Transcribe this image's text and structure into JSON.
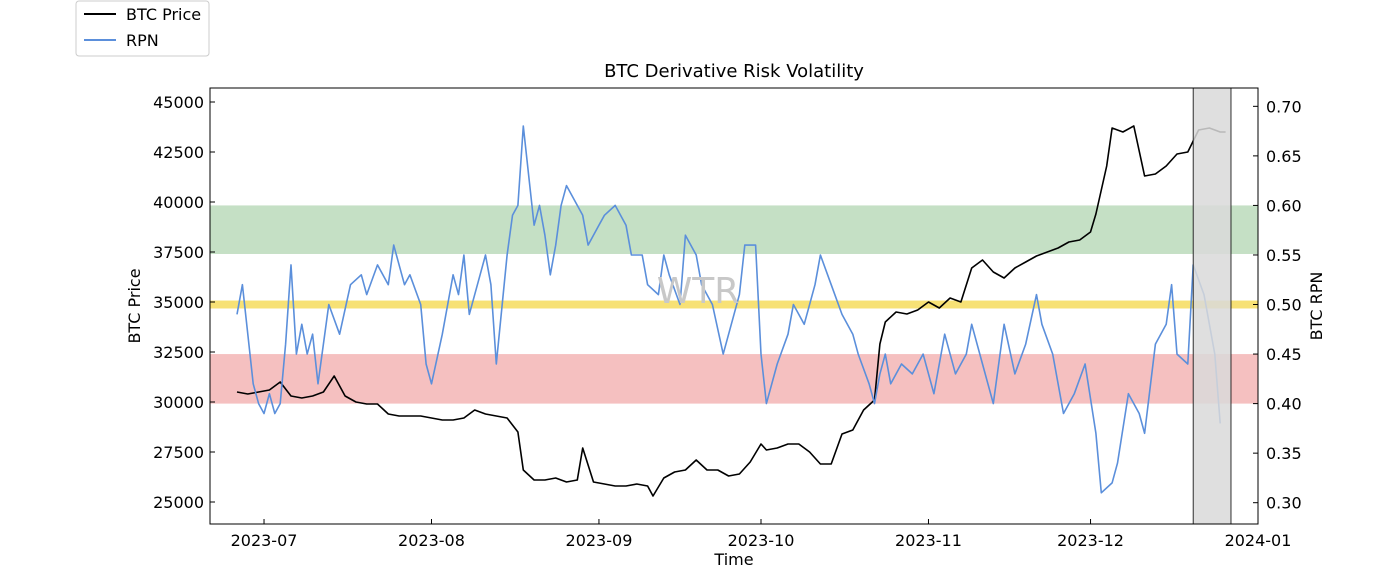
{
  "chart_data": {
    "type": "line",
    "title": "BTC Derivative Risk Volatility",
    "xlabel": "Time",
    "ylabel_left": "BTC Price",
    "ylabel_right": "BTC RPN",
    "watermark": "WTR",
    "legend_placement": "top-left",
    "x_ticks": [
      "2023-07",
      "2023-08",
      "2023-09",
      "2023-10",
      "2023-11",
      "2023-12",
      "2024-01"
    ],
    "x_range": [
      "2023-06-21",
      "2024-01-01"
    ],
    "ylim_left": [
      23900,
      45700
    ],
    "ylim_right": [
      0.2785,
      0.7185
    ],
    "y_ticks_left": [
      25000,
      27500,
      30000,
      32500,
      35000,
      37500,
      40000,
      42500,
      45000
    ],
    "y_ticks_right": [
      0.3,
      0.35,
      0.4,
      0.45,
      0.5,
      0.55,
      0.6,
      0.65,
      0.7
    ],
    "bands_rpn": [
      {
        "name": "high-risk-band",
        "from": 0.551,
        "to": 0.6,
        "color": "#c5e0c5"
      },
      {
        "name": "neutral-band",
        "from": 0.496,
        "to": 0.504,
        "color": "#f7e175"
      },
      {
        "name": "low-risk-band",
        "from": 0.4,
        "to": 0.45,
        "color": "#f5c0c0"
      }
    ],
    "highlight_range": {
      "from": "2023-12-20",
      "to": "2023-12-27",
      "color": "#d9d9d9"
    },
    "series": [
      {
        "name": "BTC Price",
        "axis": "left",
        "color": "#000000",
        "dates": [
          "2023-06-26",
          "2023-06-28",
          "2023-06-30",
          "2023-07-02",
          "2023-07-04",
          "2023-07-06",
          "2023-07-08",
          "2023-07-10",
          "2023-07-12",
          "2023-07-14",
          "2023-07-16",
          "2023-07-18",
          "2023-07-20",
          "2023-07-22",
          "2023-07-24",
          "2023-07-26",
          "2023-07-28",
          "2023-07-30",
          "2023-08-01",
          "2023-08-03",
          "2023-08-05",
          "2023-08-07",
          "2023-08-09",
          "2023-08-11",
          "2023-08-13",
          "2023-08-15",
          "2023-08-17",
          "2023-08-18",
          "2023-08-20",
          "2023-08-22",
          "2023-08-24",
          "2023-08-26",
          "2023-08-28",
          "2023-08-29",
          "2023-08-31",
          "2023-09-02",
          "2023-09-04",
          "2023-09-06",
          "2023-09-08",
          "2023-09-10",
          "2023-09-11",
          "2023-09-13",
          "2023-09-15",
          "2023-09-17",
          "2023-09-19",
          "2023-09-21",
          "2023-09-23",
          "2023-09-25",
          "2023-09-27",
          "2023-09-29",
          "2023-10-01",
          "2023-10-02",
          "2023-10-04",
          "2023-10-06",
          "2023-10-08",
          "2023-10-10",
          "2023-10-12",
          "2023-10-14",
          "2023-10-16",
          "2023-10-18",
          "2023-10-20",
          "2023-10-22",
          "2023-10-23",
          "2023-10-24",
          "2023-10-26",
          "2023-10-28",
          "2023-10-30",
          "2023-11-01",
          "2023-11-03",
          "2023-11-05",
          "2023-11-07",
          "2023-11-09",
          "2023-11-11",
          "2023-11-13",
          "2023-11-15",
          "2023-11-17",
          "2023-11-19",
          "2023-11-21",
          "2023-11-23",
          "2023-11-25",
          "2023-11-27",
          "2023-11-29",
          "2023-12-01",
          "2023-12-02",
          "2023-12-04",
          "2023-12-05",
          "2023-12-07",
          "2023-12-09",
          "2023-12-11",
          "2023-12-13",
          "2023-12-15",
          "2023-12-17",
          "2023-12-19",
          "2023-12-21",
          "2023-12-23",
          "2023-12-25",
          "2023-12-26"
        ],
        "values": [
          30500,
          30400,
          30500,
          30600,
          31000,
          30300,
          30200,
          30300,
          30500,
          31300,
          30300,
          30000,
          29900,
          29900,
          29400,
          29300,
          29300,
          29300,
          29200,
          29100,
          29100,
          29200,
          29600,
          29400,
          29300,
          29200,
          28500,
          26600,
          26100,
          26100,
          26200,
          26000,
          26100,
          27700,
          26000,
          25900,
          25800,
          25800,
          25900,
          25800,
          25300,
          26200,
          26500,
          26600,
          27100,
          26600,
          26600,
          26300,
          26400,
          27000,
          27900,
          27600,
          27700,
          27900,
          27900,
          27500,
          26900,
          26900,
          28400,
          28600,
          29600,
          30100,
          32900,
          34000,
          34500,
          34400,
          34600,
          35000,
          34700,
          35200,
          35000,
          36700,
          37100,
          36500,
          36200,
          36700,
          37000,
          37300,
          37500,
          37700,
          38000,
          38100,
          38500,
          39400,
          41800,
          43700,
          43500,
          43800,
          41300,
          41400,
          41800,
          42400,
          42500,
          43600,
          43700,
          43500,
          43500
        ]
      },
      {
        "name": "RPN",
        "axis": "right",
        "color": "#5b8fdb",
        "dates": [
          "2023-06-26",
          "2023-06-27",
          "2023-06-28",
          "2023-06-29",
          "2023-06-30",
          "2023-07-01",
          "2023-07-02",
          "2023-07-03",
          "2023-07-04",
          "2023-07-05",
          "2023-07-06",
          "2023-07-07",
          "2023-07-08",
          "2023-07-09",
          "2023-07-10",
          "2023-07-11",
          "2023-07-13",
          "2023-07-15",
          "2023-07-17",
          "2023-07-19",
          "2023-07-20",
          "2023-07-22",
          "2023-07-24",
          "2023-07-25",
          "2023-07-27",
          "2023-07-28",
          "2023-07-30",
          "2023-07-31",
          "2023-08-01",
          "2023-08-03",
          "2023-08-04",
          "2023-08-05",
          "2023-08-06",
          "2023-08-07",
          "2023-08-08",
          "2023-08-10",
          "2023-08-11",
          "2023-08-12",
          "2023-08-13",
          "2023-08-15",
          "2023-08-16",
          "2023-08-17",
          "2023-08-18",
          "2023-08-19",
          "2023-08-20",
          "2023-08-21",
          "2023-08-22",
          "2023-08-23",
          "2023-08-24",
          "2023-08-25",
          "2023-08-26",
          "2023-08-28",
          "2023-08-29",
          "2023-08-30",
          "2023-09-01",
          "2023-09-02",
          "2023-09-04",
          "2023-09-06",
          "2023-09-07",
          "2023-09-09",
          "2023-09-10",
          "2023-09-12",
          "2023-09-13",
          "2023-09-14",
          "2023-09-16",
          "2023-09-17",
          "2023-09-19",
          "2023-09-20",
          "2023-09-22",
          "2023-09-24",
          "2023-09-26",
          "2023-09-27",
          "2023-09-28",
          "2023-09-30",
          "2023-10-01",
          "2023-10-02",
          "2023-10-04",
          "2023-10-06",
          "2023-10-07",
          "2023-10-09",
          "2023-10-11",
          "2023-10-12",
          "2023-10-14",
          "2023-10-16",
          "2023-10-18",
          "2023-10-19",
          "2023-10-21",
          "2023-10-22",
          "2023-10-23",
          "2023-10-24",
          "2023-10-25",
          "2023-10-27",
          "2023-10-29",
          "2023-10-31",
          "2023-11-02",
          "2023-11-04",
          "2023-11-06",
          "2023-11-08",
          "2023-11-09",
          "2023-11-11",
          "2023-11-13",
          "2023-11-15",
          "2023-11-17",
          "2023-11-19",
          "2023-11-21",
          "2023-11-22",
          "2023-11-24",
          "2023-11-26",
          "2023-11-28",
          "2023-11-30",
          "2023-12-02",
          "2023-12-03",
          "2023-12-05",
          "2023-12-06",
          "2023-12-08",
          "2023-12-10",
          "2023-12-11",
          "2023-12-13",
          "2023-12-15",
          "2023-12-16",
          "2023-12-17",
          "2023-12-19",
          "2023-12-20",
          "2023-12-22",
          "2023-12-24",
          "2023-12-25"
        ],
        "values": [
          0.49,
          0.52,
          0.47,
          0.42,
          0.4,
          0.39,
          0.41,
          0.39,
          0.4,
          0.46,
          0.54,
          0.45,
          0.48,
          0.45,
          0.47,
          0.42,
          0.5,
          0.47,
          0.52,
          0.53,
          0.51,
          0.54,
          0.52,
          0.56,
          0.52,
          0.53,
          0.5,
          0.44,
          0.42,
          0.47,
          0.5,
          0.53,
          0.51,
          0.55,
          0.49,
          0.53,
          0.55,
          0.52,
          0.44,
          0.55,
          0.59,
          0.6,
          0.68,
          0.63,
          0.58,
          0.6,
          0.57,
          0.53,
          0.56,
          0.6,
          0.62,
          0.6,
          0.59,
          0.56,
          0.58,
          0.59,
          0.6,
          0.58,
          0.55,
          0.55,
          0.52,
          0.51,
          0.55,
          0.53,
          0.5,
          0.57,
          0.55,
          0.52,
          0.5,
          0.45,
          0.49,
          0.51,
          0.56,
          0.56,
          0.45,
          0.4,
          0.44,
          0.47,
          0.5,
          0.48,
          0.52,
          0.55,
          0.52,
          0.49,
          0.47,
          0.45,
          0.42,
          0.4,
          0.43,
          0.45,
          0.42,
          0.44,
          0.43,
          0.45,
          0.41,
          0.47,
          0.43,
          0.45,
          0.48,
          0.44,
          0.4,
          0.48,
          0.43,
          0.46,
          0.51,
          0.48,
          0.45,
          0.39,
          0.41,
          0.44,
          0.37,
          0.31,
          0.32,
          0.34,
          0.41,
          0.39,
          0.37,
          0.46,
          0.48,
          0.52,
          0.45,
          0.44,
          0.54,
          0.51,
          0.45,
          0.38
        ]
      }
    ]
  }
}
